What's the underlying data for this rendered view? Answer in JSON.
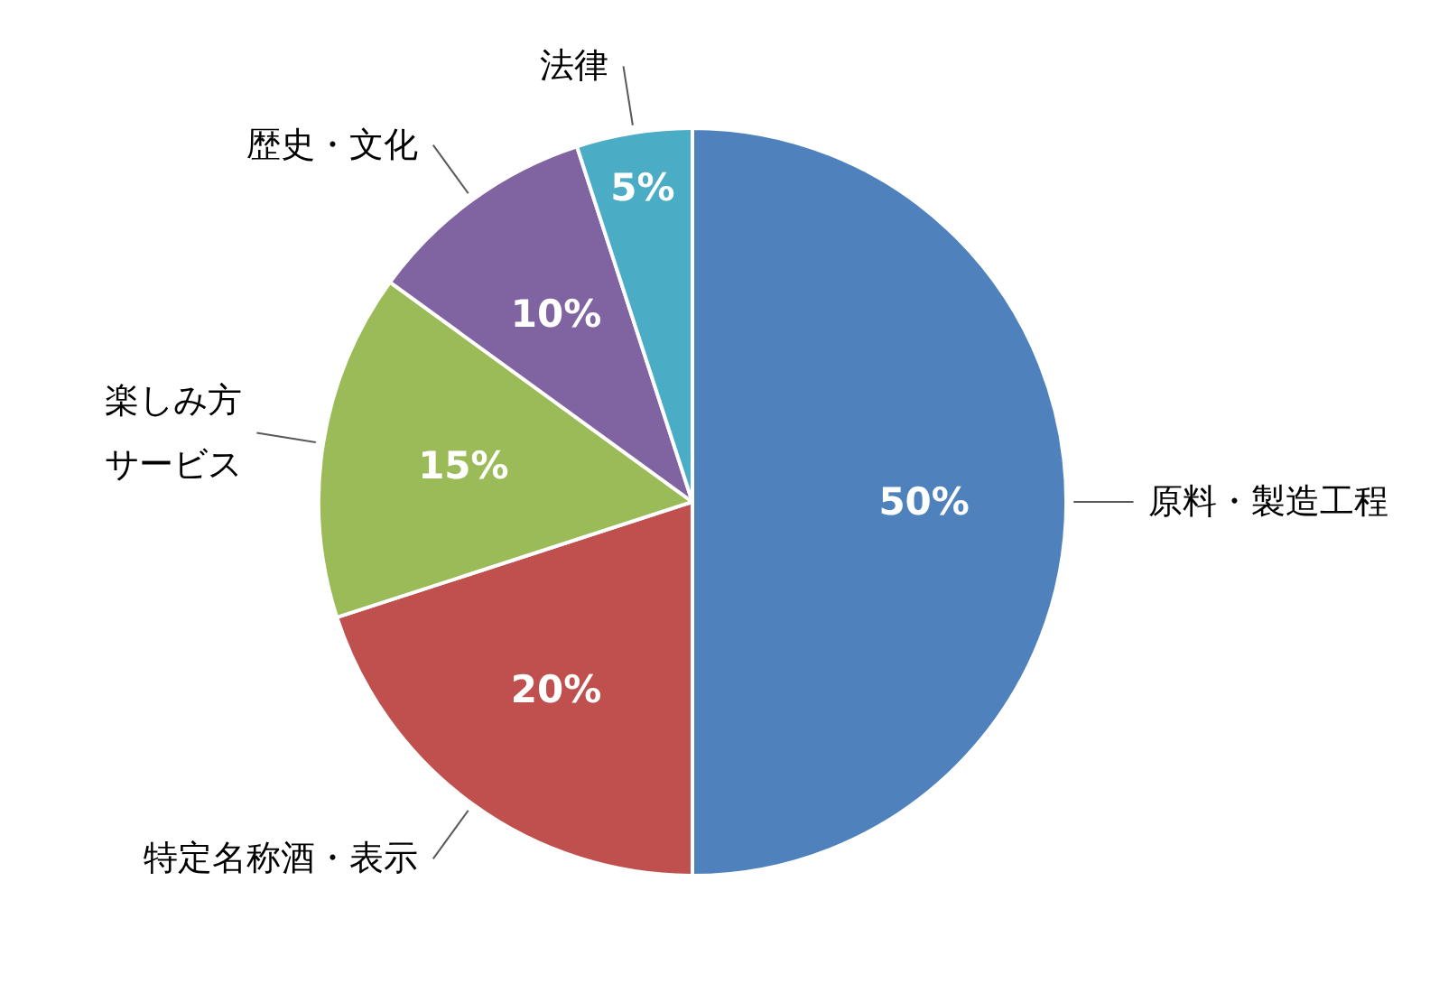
{
  "chart_data": {
    "type": "pie",
    "categories": [
      "原料・製造工程",
      "特定名称酒・表示",
      "楽しみ方サービス",
      "歴史・文化",
      "法律"
    ],
    "values": [
      50,
      20,
      15,
      10,
      5
    ],
    "colors": [
      "#4f81bd",
      "#c0504d",
      "#9bbb59",
      "#8064a2",
      "#4bacc6"
    ],
    "value_labels": [
      "50%",
      "20%",
      "15%",
      "10%",
      "5%"
    ]
  }
}
